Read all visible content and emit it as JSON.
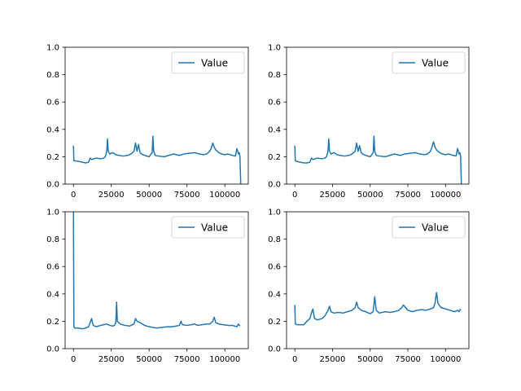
{
  "figure": {
    "background": "#ffffff"
  },
  "chart_data": [
    {
      "type": "line",
      "title": "",
      "xlabel": "",
      "ylabel": "",
      "xlim": [
        -5500,
        115500
      ],
      "ylim": [
        0,
        1
      ],
      "xticks": [
        0,
        25000,
        50000,
        75000,
        100000
      ],
      "xtick_labels": [
        "0",
        "25000",
        "50000",
        "75000",
        "100000"
      ],
      "yticks": [
        0,
        0.2,
        0.4,
        0.6,
        0.8,
        1.0
      ],
      "ytick_labels": [
        "0.0",
        "0.2",
        "0.4",
        "0.6",
        "0.8",
        "1.0"
      ],
      "legend": {
        "placement": "upper right",
        "entries": [
          "Value"
        ]
      },
      "grid": false,
      "series": [
        {
          "name": "Value",
          "color": "#1f77b4",
          "x": [
            0,
            300,
            1500,
            6000,
            8000,
            10000,
            11000,
            12000,
            15000,
            18000,
            20000,
            21000,
            22000,
            22500,
            23000,
            24000,
            26000,
            28000,
            30000,
            33000,
            36000,
            38000,
            40000,
            41000,
            42000,
            43000,
            44000,
            45000,
            47000,
            50000,
            52000,
            52500,
            53000,
            54000,
            56000,
            60000,
            63000,
            66000,
            68000,
            70000,
            73000,
            76000,
            80000,
            83000,
            86000,
            88000,
            90000,
            91000,
            92000,
            93000,
            94000,
            95000,
            96000,
            98000,
            100000,
            102000,
            105000,
            107000,
            108000,
            109000,
            109500,
            110000,
            110500
          ],
          "y": [
            0.28,
            0.17,
            0.17,
            0.16,
            0.155,
            0.16,
            0.19,
            0.18,
            0.19,
            0.185,
            0.19,
            0.2,
            0.24,
            0.33,
            0.24,
            0.22,
            0.23,
            0.215,
            0.21,
            0.205,
            0.21,
            0.22,
            0.24,
            0.3,
            0.24,
            0.29,
            0.23,
            0.22,
            0.21,
            0.2,
            0.23,
            0.35,
            0.24,
            0.21,
            0.205,
            0.2,
            0.21,
            0.22,
            0.215,
            0.21,
            0.22,
            0.225,
            0.23,
            0.22,
            0.215,
            0.22,
            0.24,
            0.26,
            0.3,
            0.27,
            0.25,
            0.24,
            0.23,
            0.22,
            0.215,
            0.22,
            0.21,
            0.205,
            0.26,
            0.22,
            0.23,
            0.2,
            0.0
          ]
        }
      ]
    },
    {
      "type": "line",
      "title": "",
      "xlabel": "",
      "ylabel": "",
      "xlim": [
        -5500,
        115500
      ],
      "ylim": [
        0,
        1
      ],
      "xticks": [
        0,
        25000,
        50000,
        75000,
        100000
      ],
      "xtick_labels": [
        "0",
        "25000",
        "50000",
        "75000",
        "100000"
      ],
      "yticks": [
        0,
        0.2,
        0.4,
        0.6,
        0.8,
        1.0
      ],
      "ytick_labels": [
        "0.0",
        "0.2",
        "0.4",
        "0.6",
        "0.8",
        "1.0"
      ],
      "legend": {
        "placement": "upper right",
        "entries": [
          "Value"
        ]
      },
      "grid": false,
      "series": [
        {
          "name": "Value",
          "color": "#1f77b4",
          "x": [
            0,
            300,
            1500,
            6000,
            8000,
            10000,
            11000,
            12000,
            15000,
            18000,
            20000,
            21000,
            22000,
            22500,
            23000,
            24000,
            26000,
            28000,
            30000,
            33000,
            36000,
            38000,
            40000,
            41000,
            42000,
            43000,
            44000,
            45000,
            47000,
            50000,
            52000,
            52500,
            53000,
            54000,
            56000,
            60000,
            63000,
            66000,
            68000,
            70000,
            73000,
            76000,
            80000,
            83000,
            86000,
            88000,
            90000,
            91000,
            92000,
            93000,
            94000,
            95000,
            96000,
            98000,
            100000,
            102000,
            105000,
            107000,
            108000,
            109000,
            109500,
            110000,
            110500
          ],
          "y": [
            0.28,
            0.17,
            0.165,
            0.155,
            0.155,
            0.16,
            0.19,
            0.18,
            0.19,
            0.185,
            0.19,
            0.2,
            0.24,
            0.33,
            0.24,
            0.22,
            0.23,
            0.215,
            0.21,
            0.205,
            0.21,
            0.22,
            0.24,
            0.3,
            0.24,
            0.28,
            0.23,
            0.22,
            0.21,
            0.2,
            0.23,
            0.35,
            0.24,
            0.21,
            0.205,
            0.2,
            0.21,
            0.22,
            0.215,
            0.21,
            0.22,
            0.225,
            0.23,
            0.22,
            0.215,
            0.22,
            0.24,
            0.27,
            0.31,
            0.27,
            0.25,
            0.24,
            0.23,
            0.22,
            0.215,
            0.22,
            0.21,
            0.205,
            0.26,
            0.22,
            0.23,
            0.2,
            0.0
          ]
        }
      ]
    },
    {
      "type": "line",
      "title": "",
      "xlabel": "",
      "ylabel": "",
      "xlim": [
        -5500,
        115500
      ],
      "ylim": [
        0,
        1
      ],
      "xticks": [
        0,
        25000,
        50000,
        75000,
        100000
      ],
      "xtick_labels": [
        "0",
        "25000",
        "50000",
        "75000",
        "100000"
      ],
      "yticks": [
        0,
        0.2,
        0.4,
        0.6,
        0.8,
        1.0
      ],
      "ytick_labels": [
        "0.0",
        "0.2",
        "0.4",
        "0.6",
        "0.8",
        "1.0"
      ],
      "legend": {
        "placement": "upper right",
        "entries": [
          "Value"
        ]
      },
      "grid": false,
      "series": [
        {
          "name": "Value",
          "color": "#1f77b4",
          "x": [
            0,
            300,
            800,
            3000,
            6000,
            8000,
            10000,
            11000,
            12000,
            13000,
            15000,
            18000,
            20000,
            22000,
            24000,
            26000,
            27000,
            28000,
            28500,
            29000,
            31000,
            34000,
            37000,
            40000,
            41000,
            42000,
            44000,
            47000,
            50000,
            53000,
            55000,
            58000,
            62000,
            65000,
            68000,
            70000,
            71000,
            72000,
            75000,
            78000,
            80000,
            82000,
            85000,
            88000,
            90000,
            92000,
            93000,
            94000,
            96000,
            99000,
            102000,
            105000,
            108000,
            109000,
            110000
          ],
          "y": [
            1.0,
            0.16,
            0.15,
            0.15,
            0.145,
            0.15,
            0.16,
            0.19,
            0.22,
            0.17,
            0.16,
            0.17,
            0.175,
            0.18,
            0.17,
            0.165,
            0.17,
            0.19,
            0.34,
            0.2,
            0.18,
            0.17,
            0.165,
            0.18,
            0.22,
            0.2,
            0.19,
            0.17,
            0.16,
            0.155,
            0.15,
            0.155,
            0.16,
            0.16,
            0.165,
            0.17,
            0.2,
            0.175,
            0.17,
            0.175,
            0.18,
            0.17,
            0.175,
            0.18,
            0.18,
            0.2,
            0.23,
            0.19,
            0.18,
            0.175,
            0.17,
            0.17,
            0.16,
            0.18,
            0.165
          ]
        }
      ]
    },
    {
      "type": "line",
      "title": "",
      "xlabel": "",
      "ylabel": "",
      "xlim": [
        -5500,
        115500
      ],
      "ylim": [
        0,
        1
      ],
      "xticks": [
        0,
        25000,
        50000,
        75000,
        100000
      ],
      "xtick_labels": [
        "0",
        "25000",
        "50000",
        "75000",
        "100000"
      ],
      "yticks": [
        0,
        0.2,
        0.4,
        0.6,
        0.8,
        1.0
      ],
      "ytick_labels": [
        "0.0",
        "0.2",
        "0.4",
        "0.6",
        "0.8",
        "1.0"
      ],
      "legend": {
        "placement": "upper right",
        "entries": [
          "Value"
        ]
      },
      "grid": false,
      "series": [
        {
          "name": "Value",
          "color": "#1f77b4",
          "x": [
            0,
            300,
            1500,
            6000,
            8000,
            10000,
            11000,
            12000,
            13000,
            15000,
            18000,
            20000,
            22000,
            23000,
            24000,
            26000,
            29000,
            32000,
            35000,
            38000,
            40000,
            41000,
            42000,
            44000,
            47000,
            50000,
            52000,
            53000,
            54000,
            56000,
            60000,
            63000,
            66000,
            69000,
            71000,
            72000,
            75000,
            78000,
            81000,
            84000,
            87000,
            90000,
            92000,
            93000,
            94000,
            95000,
            97000,
            100000,
            103000,
            106000,
            108000,
            109000,
            110000
          ],
          "y": [
            0.32,
            0.18,
            0.175,
            0.175,
            0.2,
            0.22,
            0.26,
            0.29,
            0.22,
            0.21,
            0.22,
            0.24,
            0.28,
            0.31,
            0.27,
            0.26,
            0.265,
            0.26,
            0.27,
            0.28,
            0.3,
            0.34,
            0.3,
            0.28,
            0.27,
            0.255,
            0.27,
            0.38,
            0.28,
            0.26,
            0.27,
            0.265,
            0.27,
            0.28,
            0.3,
            0.32,
            0.28,
            0.27,
            0.28,
            0.285,
            0.28,
            0.29,
            0.3,
            0.33,
            0.41,
            0.33,
            0.3,
            0.29,
            0.28,
            0.27,
            0.28,
            0.27,
            0.29
          ]
        }
      ]
    }
  ]
}
